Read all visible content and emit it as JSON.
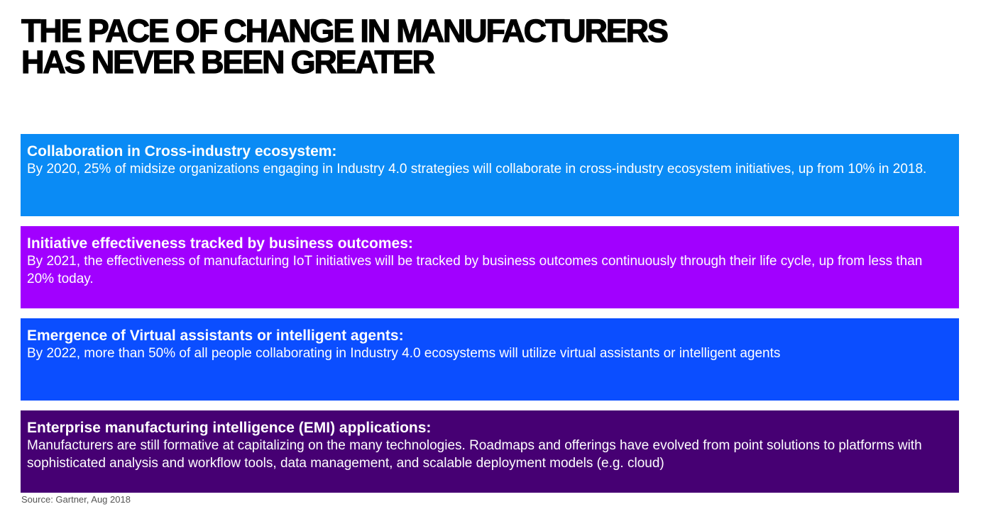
{
  "title": {
    "line1": "THE PACE OF CHANGE IN MANUFACTURERS",
    "line2": "HAS NEVER BEEN GREATER"
  },
  "cards": [
    {
      "heading": "Collaboration in Cross-industry ecosystem:",
      "body": "By 2020, 25% of midsize organizations engaging in Industry 4.0 strategies will collaborate in cross-industry ecosystem initiatives, up from 10% in 2018.",
      "color": "#0A8BF5"
    },
    {
      "heading": "Initiative effectiveness tracked by business outcomes:",
      "body": "By 2021, the effectiveness of manufacturing IoT initiatives will be tracked by business outcomes continuously through their life cycle, up from less than 20% today.",
      "color": "#A100FF"
    },
    {
      "heading": "Emergence of Virtual assistants or intelligent agents:",
      "body": "By 2022, more than 50% of all people collaborating in Industry 4.0 ecosystems will utilize virtual assistants or intelligent agents",
      "color": "#0B4EFF"
    },
    {
      "heading": "Enterprise manufacturing intelligence (EMI) applications:",
      "body": "Manufacturers are still formative at capitalizing on the many technologies. Roadmaps and offerings have evolved from point solutions to platforms with sophisticated analysis and workflow tools, data management, and scalable deployment models (e.g. cloud)",
      "color": "#460073"
    }
  ],
  "source": "Source: Gartner, Aug 2018"
}
